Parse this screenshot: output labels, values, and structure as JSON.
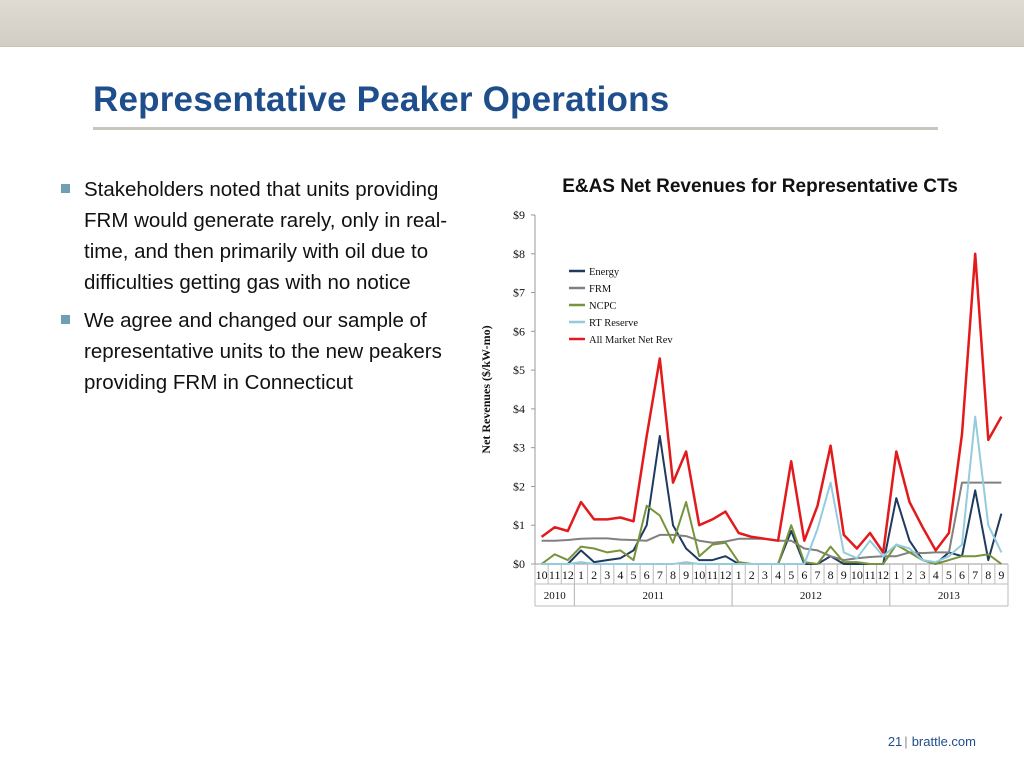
{
  "slide": {
    "title": "Representative Peaker Operations",
    "bullets": [
      "Stakeholders noted that units providing FRM would generate rarely, only in real-time, and then primarily with oil due to difficulties getting gas with no notice",
      "We agree and changed our sample of representative units to the new peakers providing FRM in Connecticut"
    ],
    "page_number": "21",
    "site": "brattle.com"
  },
  "chart_data": {
    "type": "line",
    "title": "E&AS Net Revenues for Representative CTs",
    "ylabel": "Net Revenues ($/kW-mo)",
    "ylim": [
      0,
      9
    ],
    "yticks": [
      "$0",
      "$1",
      "$2",
      "$3",
      "$4",
      "$5",
      "$6",
      "$7",
      "$8",
      "$9"
    ],
    "x": [
      "10",
      "11",
      "12",
      "1",
      "2",
      "3",
      "4",
      "5",
      "6",
      "7",
      "8",
      "9",
      "10",
      "11",
      "12",
      "1",
      "2",
      "3",
      "4",
      "5",
      "6",
      "7",
      "8",
      "9",
      "10",
      "11",
      "12",
      "1",
      "2",
      "3",
      "4",
      "5",
      "6",
      "7",
      "8",
      "9"
    ],
    "years": [
      {
        "label": "2010",
        "start": 0,
        "count": 3
      },
      {
        "label": "2011",
        "start": 3,
        "count": 12
      },
      {
        "label": "2012",
        "start": 15,
        "count": 12
      },
      {
        "label": "2013",
        "start": 27,
        "count": 9
      }
    ],
    "legend_position": "top-left",
    "series": [
      {
        "name": "Energy",
        "color": "#1f3a5f",
        "values": [
          0.0,
          0.0,
          0.0,
          0.35,
          0.05,
          0.1,
          0.15,
          0.35,
          1.0,
          3.3,
          1.0,
          0.4,
          0.1,
          0.1,
          0.2,
          0.0,
          0.0,
          0.0,
          0.0,
          0.85,
          0.0,
          0.0,
          0.2,
          0.0,
          0.0,
          0.0,
          0.0,
          1.7,
          0.6,
          0.1,
          0.0,
          0.3,
          0.2,
          1.9,
          0.1,
          1.3
        ]
      },
      {
        "name": "FRM",
        "color": "#808080",
        "values": [
          0.6,
          0.6,
          0.62,
          0.65,
          0.66,
          0.66,
          0.63,
          0.62,
          0.6,
          0.75,
          0.75,
          0.72,
          0.6,
          0.55,
          0.58,
          0.65,
          0.65,
          0.65,
          0.6,
          0.6,
          0.4,
          0.35,
          0.2,
          0.1,
          0.15,
          0.18,
          0.2,
          0.2,
          0.3,
          0.28,
          0.3,
          0.3,
          2.1,
          2.1,
          2.1,
          2.1
        ]
      },
      {
        "name": "NCPC",
        "color": "#77933c",
        "values": [
          0.0,
          0.25,
          0.1,
          0.45,
          0.4,
          0.3,
          0.35,
          0.1,
          1.5,
          1.25,
          0.55,
          1.6,
          0.2,
          0.5,
          0.55,
          0.05,
          0.0,
          0.0,
          0.0,
          1.0,
          0.05,
          0.0,
          0.45,
          0.05,
          0.05,
          0.0,
          0.0,
          0.5,
          0.3,
          0.1,
          0.0,
          0.1,
          0.2,
          0.2,
          0.25,
          0.0
        ]
      },
      {
        "name": "RT Reserve",
        "color": "#93cddd",
        "values": [
          0.0,
          0.0,
          0.0,
          0.05,
          0.0,
          0.0,
          0.0,
          0.0,
          0.0,
          0.0,
          0.0,
          0.05,
          0.0,
          0.0,
          0.0,
          0.0,
          0.0,
          0.0,
          0.0,
          0.0,
          0.0,
          0.9,
          2.1,
          0.3,
          0.15,
          0.6,
          0.2,
          0.5,
          0.4,
          0.1,
          0.05,
          0.2,
          0.5,
          3.8,
          1.0,
          0.3
        ]
      },
      {
        "name": "All Market Net Rev",
        "color": "#e31a1c",
        "values": [
          0.7,
          0.95,
          0.85,
          1.6,
          1.15,
          1.15,
          1.2,
          1.1,
          3.3,
          5.3,
          2.1,
          2.9,
          1.0,
          1.15,
          1.35,
          0.8,
          0.7,
          0.65,
          0.6,
          2.65,
          0.6,
          1.5,
          3.05,
          0.75,
          0.4,
          0.8,
          0.3,
          2.9,
          1.6,
          0.95,
          0.35,
          0.8,
          3.35,
          8.0,
          3.2,
          3.8
        ]
      }
    ]
  }
}
